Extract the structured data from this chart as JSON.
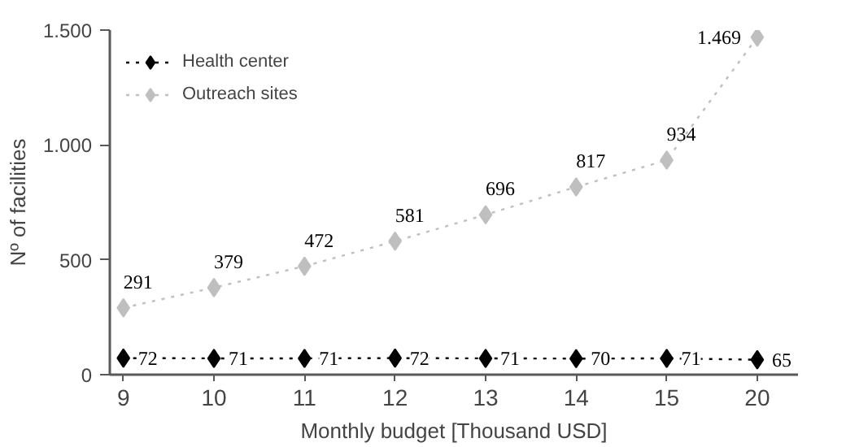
{
  "chart_data": {
    "type": "line",
    "xlabel": "Monthly budget [Thousand USD]",
    "ylabel": "Nº of facilities",
    "categories": [
      "9",
      "10",
      "11",
      "12",
      "13",
      "14",
      "15",
      "20"
    ],
    "ylim": [
      0,
      1500
    ],
    "yticks": [
      0,
      {
        "value": 500,
        "label": "500"
      },
      {
        "value": 1000,
        "label": "1.000"
      },
      {
        "value": 1500,
        "label": "1.500"
      }
    ],
    "series": [
      {
        "name": "Health center",
        "color": "#000000",
        "values": [
          72,
          71,
          71,
          72,
          71,
          70,
          71,
          65
        ],
        "value_labels": [
          "72",
          "71",
          "71",
          "72",
          "71",
          "70",
          "71",
          "65"
        ]
      },
      {
        "name": "Outreach sites",
        "color": "#bfbfbf",
        "values": [
          291,
          379,
          472,
          581,
          696,
          817,
          934,
          1469
        ],
        "value_labels": [
          "291",
          "379",
          "472",
          "581",
          "696",
          "817",
          "934",
          "1.469"
        ]
      }
    ],
    "marker": "diamond",
    "line_style": "dotted",
    "grid": false,
    "legend": "top left"
  }
}
